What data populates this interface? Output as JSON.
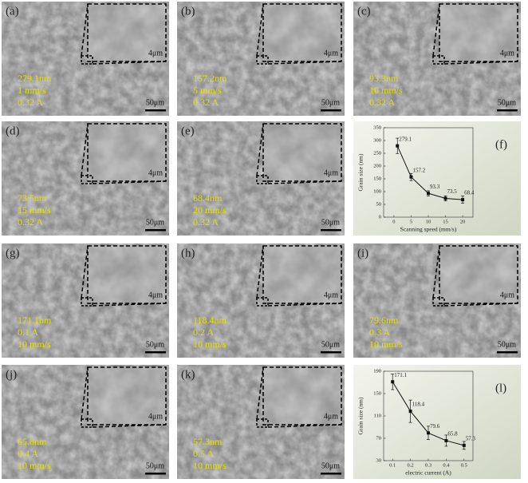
{
  "panels": [
    {
      "label": "(a)",
      "lines": [
        "279.1nm",
        "1 mm/s",
        "0.32 A"
      ],
      "inset_scale": "4μm",
      "scale": "50μm"
    },
    {
      "label": "(b)",
      "lines": [
        "157.2nm",
        "5 mm/s",
        "0.32 A"
      ],
      "inset_scale": "4μm",
      "scale": "50μm"
    },
    {
      "label": "(c)",
      "lines": [
        "93.3nm",
        "10 mm/s",
        "0.32 A"
      ],
      "inset_scale": "4μm",
      "scale": "50μm"
    },
    {
      "label": "(d)",
      "lines": [
        "73.5nm",
        "15 mm/s",
        "0.32 A"
      ],
      "inset_scale": "4μm",
      "scale": "50μm"
    },
    {
      "label": "(e)",
      "lines": [
        "68.4nm",
        "20 mm/s",
        "0.32 A"
      ],
      "inset_scale": "4μm",
      "scale": "50μm"
    },
    {
      "label": "(g)",
      "lines": [
        "171.1nm",
        "0.1 A",
        "10 mm/s"
      ],
      "inset_scale": "4μm",
      "scale": "50μm"
    },
    {
      "label": "(h)",
      "lines": [
        "118.4nm",
        "0.2 A",
        "10 mm/s"
      ],
      "inset_scale": "4μm",
      "scale": "50μm"
    },
    {
      "label": "(i)",
      "lines": [
        "79.6nm",
        "0.3 A",
        "10 mm/s"
      ],
      "inset_scale": "4μm",
      "scale": "50μm"
    },
    {
      "label": "(j)",
      "lines": [
        "65.8nm",
        "0.4 A",
        "10 mm/s"
      ],
      "inset_scale": "4μm",
      "scale": "50μm"
    },
    {
      "label": "(k)",
      "lines": [
        "57.3nm",
        "0.5 A",
        "10 mm/s"
      ],
      "inset_scale": "4μm",
      "scale": "50μm"
    }
  ],
  "chart_data": [
    {
      "type": "line",
      "panel_label": "(f)",
      "x_label": "Scanning speed (mm/s)",
      "y_label": "Grain size (nm)",
      "x": [
        1,
        5,
        10,
        15,
        20
      ],
      "values": [
        279.1,
        157.2,
        93.3,
        73.5,
        68.4
      ],
      "errors": [
        30,
        14,
        10,
        10,
        14
      ],
      "xlim": [
        -3,
        23
      ],
      "xticks": [
        0,
        5,
        10,
        15,
        20
      ],
      "ylim": [
        0,
        350
      ],
      "yticks": [
        0,
        50,
        100,
        150,
        200,
        250,
        300,
        350
      ],
      "color": "#111111"
    },
    {
      "type": "line",
      "panel_label": "(l)",
      "x_label": "electric current (A)",
      "y_label": "Grain size (nm)",
      "x": [
        0.1,
        0.2,
        0.3,
        0.4,
        0.5
      ],
      "values": [
        171.1,
        118.4,
        79.6,
        65.8,
        57.3
      ],
      "errors": [
        14,
        20,
        12,
        10,
        7
      ],
      "xlim": [
        0.05,
        0.55
      ],
      "xticks": [
        0.1,
        0.2,
        0.3,
        0.4,
        0.5
      ],
      "ylim": [
        30,
        190
      ],
      "yticks": [
        30,
        70,
        110,
        150,
        190
      ],
      "color": "#111111"
    }
  ]
}
